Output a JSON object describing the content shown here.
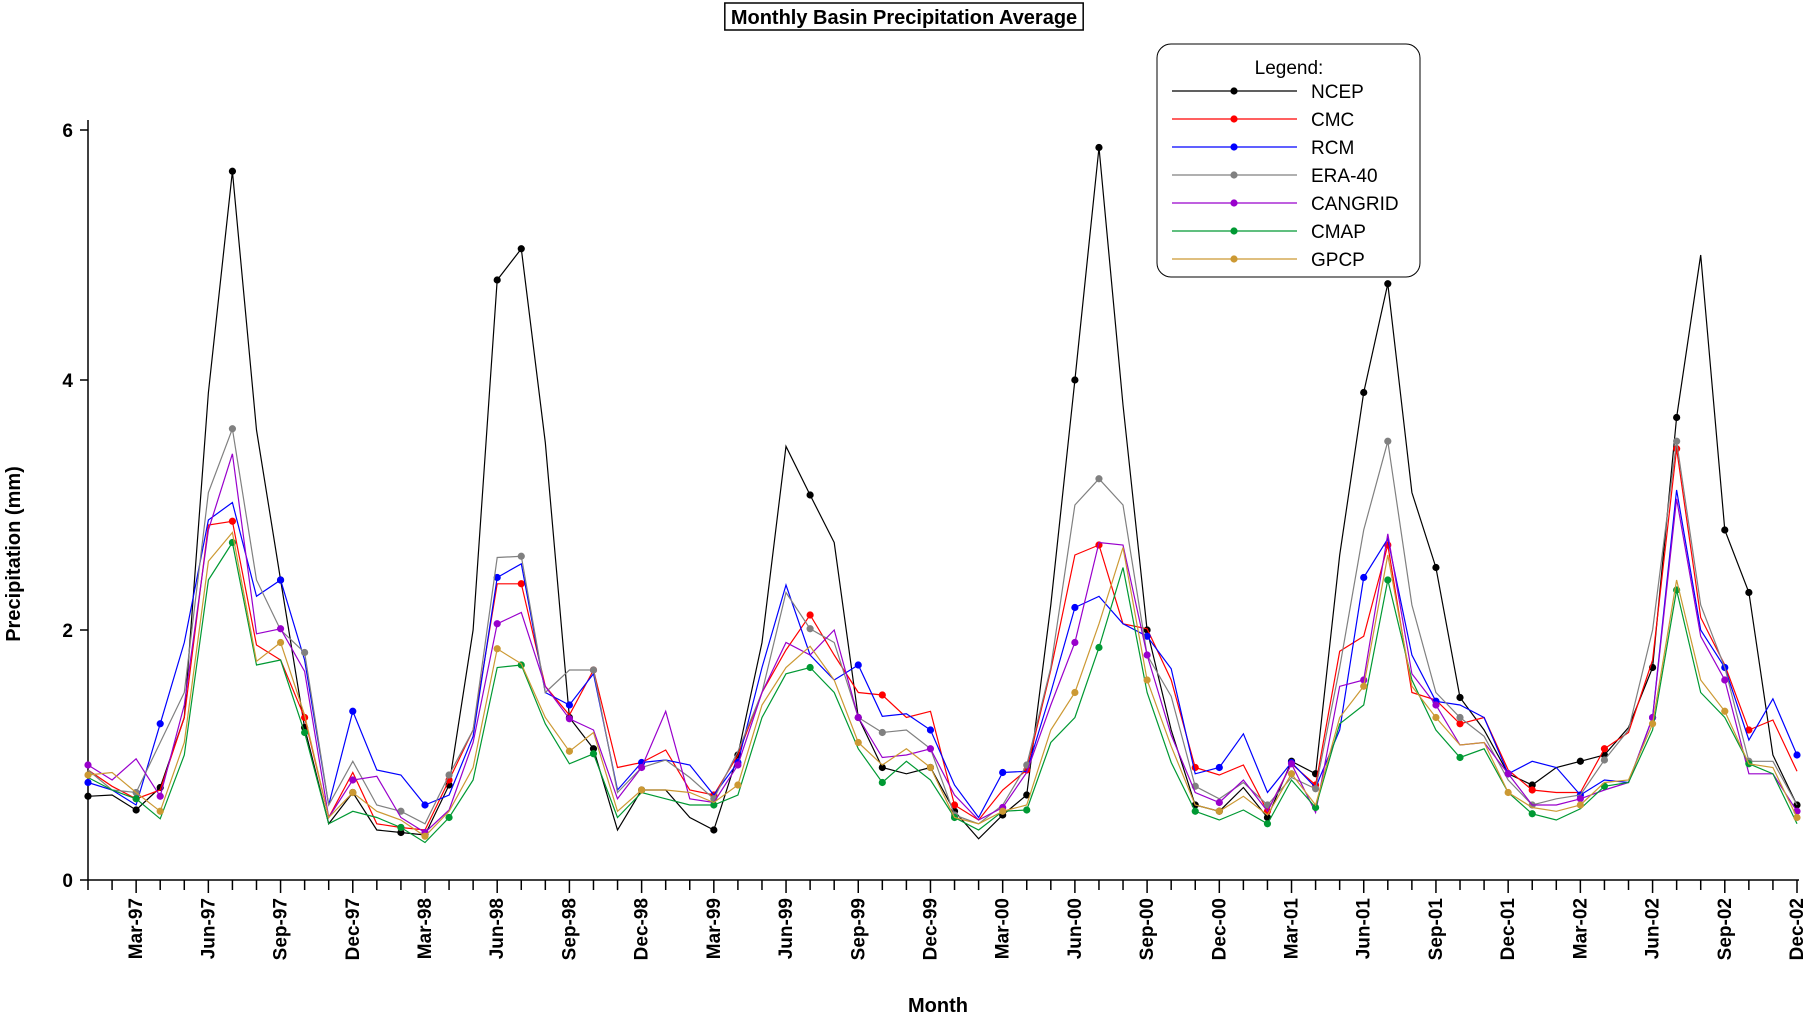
{
  "chart_data": {
    "type": "line",
    "title": "Monthly Basin Precipitation Average",
    "xlabel": "Month",
    "ylabel": "Precipitation (mm)",
    "ylim": [
      0,
      6
    ],
    "yticks": [
      0,
      2,
      4,
      6
    ],
    "x_tick_labels": [
      "Mar-97",
      "Jun-97",
      "Sep-97",
      "Dec-97",
      "Mar-98",
      "Jun-98",
      "Sep-98",
      "Dec-98",
      "Mar-99",
      "Jun-99",
      "Sep-99",
      "Dec-99",
      "Mar-00",
      "Jun-00",
      "Sep-00",
      "Dec-00",
      "Mar-01",
      "Jun-01",
      "Sep-01",
      "Dec-01",
      "Mar-02",
      "Jun-02",
      "Sep-02",
      "Dec-02"
    ],
    "months": [
      "Jan-97",
      "Feb-97",
      "Mar-97",
      "Apr-97",
      "May-97",
      "Jun-97",
      "Jul-97",
      "Aug-97",
      "Sep-97",
      "Oct-97",
      "Nov-97",
      "Dec-97",
      "Jan-98",
      "Feb-98",
      "Mar-98",
      "Apr-98",
      "May-98",
      "Jun-98",
      "Jul-98",
      "Aug-98",
      "Sep-98",
      "Oct-98",
      "Nov-98",
      "Dec-98",
      "Jan-99",
      "Feb-99",
      "Mar-99",
      "Apr-99",
      "May-99",
      "Jun-99",
      "Jul-99",
      "Aug-99",
      "Sep-99",
      "Oct-99",
      "Nov-99",
      "Dec-99",
      "Jan-00",
      "Feb-00",
      "Mar-00",
      "Apr-00",
      "May-00",
      "Jun-00",
      "Jul-00",
      "Aug-00",
      "Sep-00",
      "Oct-00",
      "Nov-00",
      "Dec-00",
      "Jan-01",
      "Feb-01",
      "Mar-01",
      "Apr-01",
      "May-01",
      "Jun-01",
      "Jul-01",
      "Aug-01",
      "Sep-01",
      "Oct-01",
      "Nov-01",
      "Dec-01",
      "Jan-02",
      "Feb-02",
      "Mar-02",
      "Apr-02",
      "May-02",
      "Jun-02",
      "Jul-02",
      "Aug-02",
      "Sep-02",
      "Oct-02",
      "Nov-02",
      "Dec-02"
    ],
    "legend": {
      "title": "Legend:",
      "position": "top-right"
    },
    "grid": false,
    "series": [
      {
        "name": "NCEP",
        "color": "#000000",
        "values": [
          0.67,
          0.68,
          0.56,
          0.74,
          1.3,
          3.9,
          5.67,
          3.6,
          2.4,
          1.22,
          0.45,
          0.7,
          0.4,
          0.38,
          0.36,
          0.76,
          2.0,
          4.8,
          5.05,
          3.5,
          1.3,
          1.05,
          0.4,
          0.72,
          0.72,
          0.5,
          0.4,
          1.0,
          1.9,
          3.47,
          3.08,
          2.7,
          1.3,
          0.9,
          0.85,
          0.9,
          0.55,
          0.33,
          0.52,
          0.68,
          2.2,
          4.0,
          5.86,
          3.8,
          2.0,
          1.2,
          0.6,
          0.55,
          0.74,
          0.5,
          0.95,
          0.85,
          2.6,
          3.9,
          4.77,
          3.1,
          2.5,
          1.46,
          1.2,
          0.85,
          0.76,
          0.9,
          0.95,
          1.0,
          1.22,
          1.7,
          3.7,
          5.0,
          2.8,
          2.3,
          1.0,
          0.6
        ]
      },
      {
        "name": "CMC",
        "color": "#ff0000",
        "values": [
          0.88,
          0.75,
          0.65,
          0.72,
          1.3,
          2.84,
          2.87,
          1.88,
          1.76,
          1.3,
          0.5,
          0.86,
          0.45,
          0.42,
          0.4,
          0.8,
          1.2,
          2.37,
          2.37,
          1.55,
          1.32,
          1.68,
          0.9,
          0.94,
          1.04,
          0.72,
          0.68,
          1.0,
          1.5,
          1.84,
          2.12,
          1.8,
          1.5,
          1.48,
          1.3,
          1.35,
          0.6,
          0.48,
          0.72,
          0.88,
          1.68,
          2.6,
          2.68,
          2.05,
          2.01,
          1.6,
          0.9,
          0.84,
          0.92,
          0.55,
          0.93,
          0.76,
          1.83,
          1.95,
          2.68,
          1.5,
          1.44,
          1.25,
          1.3,
          0.88,
          0.72,
          0.7,
          0.7,
          1.05,
          1.18,
          1.76,
          3.45,
          2.1,
          1.72,
          1.2,
          1.28,
          0.87
        ]
      },
      {
        "name": "RCM",
        "color": "#0000ff",
        "values": [
          0.78,
          0.72,
          0.6,
          1.25,
          1.9,
          2.88,
          3.02,
          2.27,
          2.4,
          1.76,
          0.6,
          1.35,
          0.88,
          0.84,
          0.6,
          0.68,
          1.15,
          2.42,
          2.53,
          1.5,
          1.4,
          1.65,
          0.72,
          0.94,
          0.96,
          0.92,
          0.68,
          0.94,
          1.7,
          2.36,
          1.8,
          1.6,
          1.72,
          1.31,
          1.33,
          1.2,
          0.76,
          0.5,
          0.86,
          0.87,
          1.5,
          2.18,
          2.27,
          2.05,
          1.95,
          1.69,
          0.85,
          0.9,
          1.17,
          0.7,
          0.94,
          0.74,
          1.2,
          2.42,
          2.73,
          1.8,
          1.43,
          1.4,
          1.3,
          0.85,
          0.95,
          0.9,
          0.68,
          0.8,
          0.78,
          1.3,
          3.12,
          2.0,
          1.7,
          1.12,
          1.45,
          1.0
        ]
      },
      {
        "name": "ERA-40",
        "color": "#808080",
        "values": [
          0.88,
          0.72,
          0.7,
          1.1,
          1.5,
          3.1,
          3.61,
          2.4,
          2.0,
          1.82,
          0.6,
          0.95,
          0.6,
          0.55,
          0.45,
          0.84,
          1.2,
          2.58,
          2.59,
          1.5,
          1.68,
          1.68,
          0.7,
          0.9,
          0.96,
          0.82,
          0.65,
          1.03,
          1.5,
          2.3,
          2.01,
          1.9,
          1.3,
          1.18,
          1.2,
          1.05,
          0.52,
          0.45,
          0.6,
          0.92,
          1.7,
          3.0,
          3.21,
          3.0,
          1.8,
          1.47,
          0.75,
          0.65,
          0.78,
          0.6,
          0.82,
          0.73,
          1.7,
          2.8,
          3.51,
          2.2,
          1.5,
          1.3,
          1.15,
          0.8,
          0.6,
          0.65,
          0.68,
          0.96,
          1.2,
          2.0,
          3.51,
          2.2,
          1.7,
          0.95,
          0.95,
          0.6
        ]
      },
      {
        "name": "CANGRID",
        "color": "#9900cc",
        "values": [
          0.92,
          0.8,
          0.97,
          0.67,
          1.4,
          2.8,
          3.41,
          1.97,
          2.01,
          1.67,
          0.5,
          0.8,
          0.83,
          0.5,
          0.38,
          0.56,
          1.1,
          2.05,
          2.14,
          1.55,
          1.29,
          1.2,
          0.65,
          0.9,
          1.35,
          0.65,
          0.62,
          0.92,
          1.5,
          1.9,
          1.8,
          2.0,
          1.3,
          0.98,
          1.0,
          1.05,
          0.68,
          0.48,
          0.58,
          0.86,
          1.4,
          1.9,
          2.7,
          2.68,
          1.8,
          1.16,
          0.7,
          0.62,
          0.8,
          0.55,
          0.93,
          0.54,
          1.55,
          1.6,
          2.77,
          1.65,
          1.4,
          1.08,
          1.1,
          0.85,
          0.6,
          0.6,
          0.65,
          0.72,
          0.78,
          1.3,
          3.05,
          1.95,
          1.6,
          0.85,
          0.85,
          0.55
        ]
      },
      {
        "name": "CMAP",
        "color": "#009933",
        "values": [
          0.82,
          0.72,
          0.65,
          0.49,
          1.0,
          2.4,
          2.7,
          1.72,
          1.76,
          1.18,
          0.45,
          0.55,
          0.5,
          0.42,
          0.3,
          0.5,
          0.8,
          1.7,
          1.72,
          1.25,
          0.93,
          1.01,
          0.5,
          0.7,
          0.65,
          0.6,
          0.6,
          0.68,
          1.3,
          1.65,
          1.7,
          1.5,
          1.05,
          0.78,
          0.95,
          0.8,
          0.5,
          0.4,
          0.55,
          0.56,
          1.1,
          1.3,
          1.86,
          2.5,
          1.5,
          0.94,
          0.55,
          0.48,
          0.56,
          0.45,
          0.8,
          0.58,
          1.25,
          1.4,
          2.4,
          1.6,
          1.2,
          0.98,
          1.05,
          0.7,
          0.53,
          0.48,
          0.57,
          0.75,
          0.78,
          1.2,
          2.32,
          1.5,
          1.3,
          0.93,
          0.85,
          0.45
        ]
      },
      {
        "name": "GPCP",
        "color": "#cc9933",
        "values": [
          0.84,
          0.86,
          0.7,
          0.55,
          1.1,
          2.55,
          2.78,
          1.75,
          1.9,
          1.32,
          0.5,
          0.7,
          0.55,
          0.48,
          0.35,
          0.55,
          0.9,
          1.85,
          1.73,
          1.3,
          1.03,
          1.18,
          0.55,
          0.72,
          0.72,
          0.7,
          0.62,
          0.76,
          1.4,
          1.7,
          1.87,
          1.6,
          1.1,
          0.92,
          1.05,
          0.9,
          0.5,
          0.45,
          0.55,
          0.6,
          1.2,
          1.5,
          2.05,
          2.66,
          1.6,
          1.07,
          0.6,
          0.55,
          0.67,
          0.52,
          0.85,
          0.6,
          1.3,
          1.55,
          2.6,
          1.55,
          1.3,
          1.08,
          1.1,
          0.7,
          0.58,
          0.55,
          0.6,
          0.78,
          0.8,
          1.25,
          2.4,
          1.6,
          1.35,
          0.93,
          0.9,
          0.5
        ]
      }
    ]
  }
}
